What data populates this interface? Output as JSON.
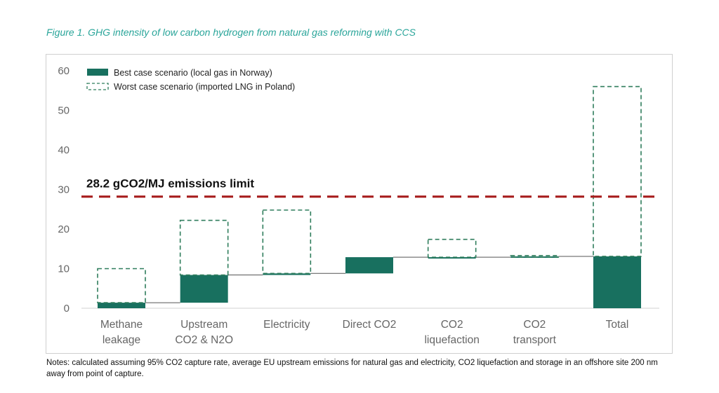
{
  "figure_title": "Figure 1. GHG intensity of low carbon hydrogen from natural gas reforming with CCS",
  "notes": "Notes: calculated assuming 95% CO2 capture rate, average EU upstream emissions for natural gas and electricity, CO2 liquefaction and storage in an offshore site 200 nm away from point of capture.",
  "colors": {
    "best": "#18705f",
    "worst_stroke": "#2f7d5c",
    "limit": "#a81f1f",
    "connector": "#555555",
    "title": "#2aa59a"
  },
  "chart_data": {
    "type": "bar",
    "subtype": "waterfall",
    "categories": [
      [
        "Methane",
        "leakage"
      ],
      [
        "Upstream",
        "CO2 & N2O"
      ],
      [
        "Electricity"
      ],
      [
        "Direct CO2"
      ],
      [
        "CO2",
        "liquefaction"
      ],
      [
        "CO2",
        "transport"
      ],
      [
        "Total"
      ]
    ],
    "series": [
      {
        "name": "Best case scenario (local gas in Norway)",
        "style": "solid",
        "ranges": [
          [
            0,
            1.4
          ],
          [
            1.4,
            8.4
          ],
          [
            8.4,
            8.8
          ],
          [
            8.8,
            12.9
          ],
          [
            12.9,
            12.9
          ],
          [
            12.9,
            13.1
          ],
          [
            0,
            13.1
          ]
        ]
      },
      {
        "name": "Worst case scenario (imported LNG in Poland)",
        "style": "dashed",
        "ranges": [
          [
            1.4,
            10.0
          ],
          [
            8.4,
            22.2
          ],
          [
            8.8,
            24.8
          ],
          [
            12.9,
            12.9
          ],
          [
            12.9,
            17.4
          ],
          [
            12.9,
            13.3
          ],
          [
            13.1,
            56.0
          ]
        ]
      }
    ],
    "reference_line": {
      "value": 28.2,
      "label": "28.2 gCO2/MJ emissions limit"
    },
    "yticks": [
      "0",
      "10",
      "20",
      "30",
      "40",
      "50",
      "60"
    ],
    "ylim": [
      0,
      60
    ],
    "legend_position": "top-left",
    "grid": false
  }
}
